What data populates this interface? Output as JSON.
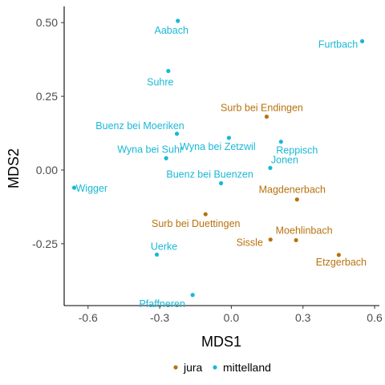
{
  "chart_data": {
    "type": "scatter",
    "title": "",
    "xlabel": "MDS1",
    "ylabel": "MDS2",
    "xlim": [
      -0.7,
      0.62
    ],
    "ylim": [
      -0.46,
      0.555
    ],
    "xticks": [
      -0.6,
      -0.3,
      0.0,
      0.3,
      0.6
    ],
    "xtick_labels": [
      "-0.6",
      "-0.3",
      "0.0",
      "0.3",
      "0.6"
    ],
    "yticks": [
      -0.25,
      0.0,
      0.25,
      0.5
    ],
    "ytick_labels": [
      "-0.25",
      "0.00",
      "0.25",
      "0.50"
    ],
    "grid": false,
    "legend": "bottom",
    "colors": {
      "jura": "#b8720f",
      "mittelland": "#1ab8d6"
    },
    "series": [
      {
        "name": "jura",
        "points": [
          {
            "label": "Surb bei Endingen",
            "x": 0.148,
            "y": 0.181
          },
          {
            "label": "Magdenerbach",
            "x": 0.275,
            "y": -0.1
          },
          {
            "label": "Surb bei Duettingen",
            "x": -0.108,
            "y": -0.15
          },
          {
            "label": "Moehlinbach",
            "x": 0.271,
            "y": -0.238
          },
          {
            "label": "Sissle",
            "x": 0.164,
            "y": -0.236
          },
          {
            "label": "Etzgerbach",
            "x": 0.45,
            "y": -0.288
          }
        ]
      },
      {
        "name": "mittelland",
        "points": [
          {
            "label": "Aabach",
            "x": -0.224,
            "y": 0.506
          },
          {
            "label": "Furtbach",
            "x": 0.548,
            "y": 0.437
          },
          {
            "label": "Suhre",
            "x": -0.264,
            "y": 0.336
          },
          {
            "label": "Buenz bei Moeriken",
            "x": -0.228,
            "y": 0.123
          },
          {
            "label": "Wyna bei Zetzwil",
            "x": -0.01,
            "y": 0.109
          },
          {
            "label": "Reppisch",
            "x": 0.208,
            "y": 0.096
          },
          {
            "label": "Wyna bei Suhr",
            "x": -0.273,
            "y": 0.04
          },
          {
            "label": "Jonen",
            "x": 0.163,
            "y": 0.007
          },
          {
            "label": "Buenz bei Buenzen",
            "x": -0.043,
            "y": -0.045
          },
          {
            "label": "Wigger",
            "x": -0.658,
            "y": -0.06
          },
          {
            "label": "Uerke",
            "x": -0.312,
            "y": -0.287
          },
          {
            "label": "Pfaffneren",
            "x": -0.162,
            "y": -0.424
          }
        ]
      }
    ]
  }
}
